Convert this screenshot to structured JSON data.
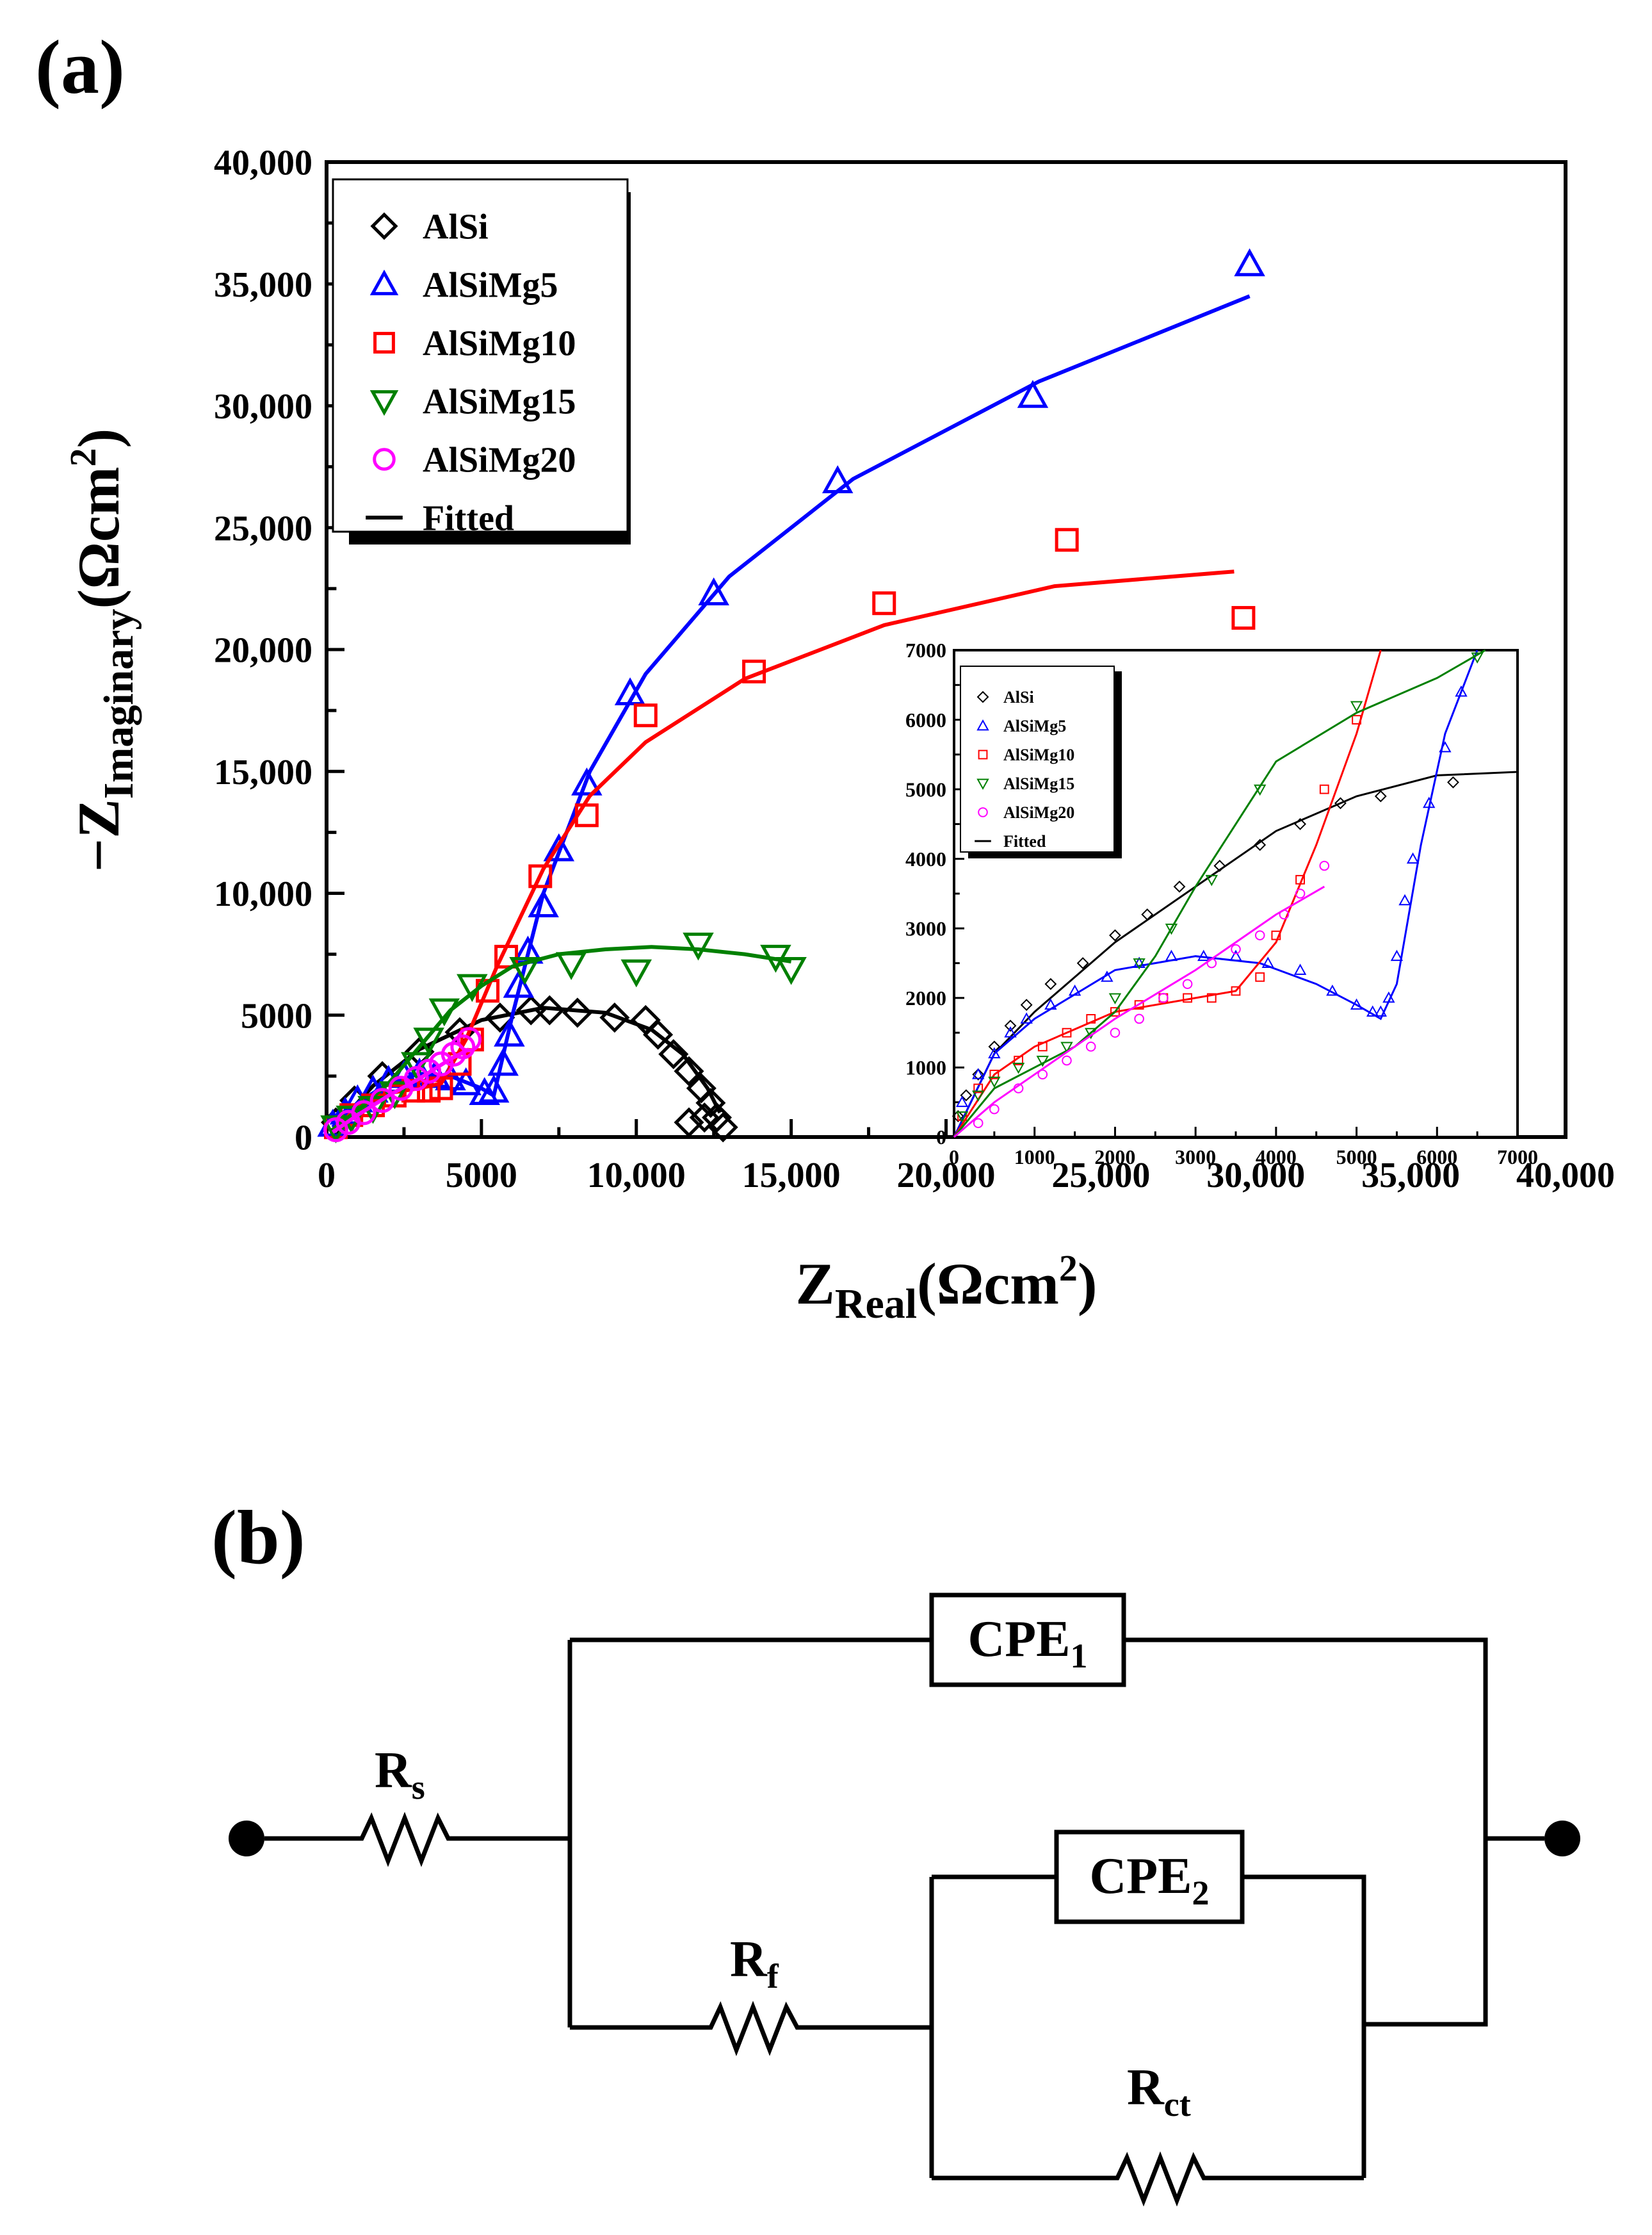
{
  "panel_labels": {
    "a": "(a)",
    "b": "(b)"
  },
  "colors": {
    "AlSi": "#000000",
    "AlSiMg5": "#0000ff",
    "AlSiMg10": "#ff0000",
    "AlSiMg15": "#008000",
    "AlSiMg20": "#ff00ff",
    "Fitted": "#000000"
  },
  "chart_data": [
    {
      "type": "scatter",
      "panel": "(a) main",
      "xlabel": {
        "main": "Z",
        "sub": "Real",
        "unit": "(Ωcm",
        "sup": "2",
        "close": ")"
      },
      "ylabel": {
        "main": "−Z",
        "sub": "Imaginary",
        "unit": "(Ωcm",
        "sup": "2",
        "close": ")"
      },
      "xlim": [
        0,
        40000
      ],
      "ylim": [
        0,
        40000
      ],
      "x_ticks": [
        "0",
        "5000",
        "10,000",
        "15,000",
        "20,000",
        "25,000",
        "30,000",
        "35,000",
        "40,000"
      ],
      "y_ticks": [
        "0",
        "5000",
        "10,000",
        "15,000",
        "20,000",
        "25,000",
        "30,000",
        "35,000",
        "40,000"
      ],
      "legend_position": "top-left",
      "legend": [
        "AlSi",
        "AlSiMg5",
        "AlSiMg10",
        "AlSiMg15",
        "AlSiMg20",
        "Fitted"
      ],
      "series": [
        {
          "name": "AlSi",
          "marker": "diamond",
          "x": [
            300,
            900,
            1800,
            3000,
            4300,
            5600,
            6600,
            7200,
            8100,
            9300,
            10300,
            10700,
            11200,
            11700,
            12100,
            12400,
            12600,
            12800,
            12200,
            11700
          ],
          "y": [
            600,
            1500,
            2500,
            3500,
            4300,
            4900,
            5200,
            5200,
            5100,
            4900,
            4800,
            4200,
            3400,
            2700,
            2000,
            1400,
            800,
            400,
            800,
            600
          ],
          "fit_x": [
            200,
            1500,
            3000,
            5000,
            7000,
            9000,
            10500,
            11500,
            12300,
            12700
          ],
          "fit_y": [
            300,
            2100,
            3600,
            4800,
            5300,
            5100,
            4400,
            3400,
            2000,
            1000
          ]
        },
        {
          "name": "AlSiMg5",
          "marker": "triangle-up",
          "x": [
            200,
            600,
            1000,
            1500,
            2000,
            2500,
            3000,
            3500,
            4000,
            4500,
            5100,
            5400,
            5700,
            5900,
            6200,
            6500,
            7000,
            7500,
            8400,
            9800,
            12500,
            16500,
            22800,
            29800
          ],
          "y": [
            500,
            1000,
            1500,
            1900,
            2300,
            2500,
            2600,
            2500,
            2400,
            2200,
            1800,
            1900,
            3000,
            4200,
            6200,
            7600,
            9500,
            11800,
            14500,
            18200,
            22300,
            26900,
            30400,
            35800
          ],
          "fit_x": [
            200,
            1000,
            2000,
            3000,
            4000,
            5000,
            5400,
            6000,
            7000,
            8500,
            10300,
            13000,
            17000,
            23000,
            29800
          ],
          "fit_y": [
            400,
            1400,
            2200,
            2600,
            2500,
            2000,
            1700,
            5000,
            10000,
            15000,
            19000,
            23000,
            27000,
            31000,
            34500
          ]
        },
        {
          "name": "AlSiMg10",
          "marker": "square",
          "x": [
            300,
            800,
            1500,
            2200,
            2800,
            3300,
            3700,
            4300,
            4700,
            5200,
            5800,
            6900,
            8400,
            10300,
            13800,
            18000,
            23900,
            29600
          ],
          "y": [
            400,
            900,
            1300,
            1700,
            1900,
            1900,
            2000,
            3000,
            4000,
            6000,
            7400,
            10700,
            13200,
            17300,
            19100,
            21900,
            24500,
            21300
          ],
          "fit_x": [
            200,
            1000,
            2000,
            3000,
            3700,
            4500,
            5500,
            7000,
            8500,
            10300,
            13500,
            18000,
            23500,
            29300
          ],
          "fit_y": [
            300,
            1200,
            1800,
            2000,
            2200,
            4000,
            7000,
            11000,
            14000,
            16200,
            18800,
            21000,
            22600,
            23200
          ]
        },
        {
          "name": "AlSiMg15",
          "marker": "triangle-down",
          "x": [
            300,
            800,
            1500,
            2200,
            2900,
            3300,
            3800,
            4700,
            6400,
            7900,
            10000,
            12000,
            14500,
            15000
          ],
          "y": [
            400,
            800,
            1200,
            1800,
            3000,
            4000,
            5200,
            6200,
            6900,
            7100,
            6800,
            7900,
            7400,
            6900
          ],
          "fit_x": [
            200,
            1000,
            2000,
            3000,
            4000,
            5000,
            6000,
            7500,
            9000,
            10500,
            12000,
            13500,
            15000
          ],
          "fit_y": [
            300,
            1100,
            2200,
            3700,
            5200,
            6200,
            7000,
            7500,
            7700,
            7800,
            7700,
            7500,
            7200
          ]
        },
        {
          "name": "AlSiMg20",
          "marker": "circle",
          "x": [
            300,
            700,
            1200,
            1800,
            2400,
            2900,
            3300,
            3700,
            4100,
            4400,
            4600
          ],
          "y": [
            300,
            600,
            1000,
            1500,
            2000,
            2400,
            2700,
            3000,
            3400,
            3700,
            4000
          ],
          "fit_x": [
            200,
            1000,
            2000,
            3000,
            4000,
            4600
          ],
          "fit_y": [
            200,
            900,
            1700,
            2400,
            3200,
            3600
          ]
        }
      ]
    },
    {
      "type": "scatter",
      "panel": "(a) inset",
      "xlim": [
        0,
        7000
      ],
      "ylim": [
        0,
        7000
      ],
      "x_ticks": [
        "0",
        "1000",
        "2000",
        "3000",
        "4000",
        "5000",
        "6000",
        "7000"
      ],
      "y_ticks": [
        "0",
        "1000",
        "2000",
        "3000",
        "4000",
        "5000",
        "6000",
        "7000"
      ],
      "legend_position": "top-left",
      "legend": [
        "AlSi",
        "AlSiMg5",
        "AlSiMg10",
        "AlSiMg15",
        "AlSiMg20",
        "Fitted"
      ],
      "series": [
        {
          "name": "AlSi",
          "marker": "diamond",
          "x": [
            50,
            150,
            300,
            500,
            700,
            900,
            1200,
            1600,
            2000,
            2400,
            2800,
            3300,
            3800,
            4300,
            4800,
            5300,
            6200
          ],
          "y": [
            300,
            600,
            900,
            1300,
            1600,
            1900,
            2200,
            2500,
            2900,
            3200,
            3600,
            3900,
            4200,
            4500,
            4800,
            4900,
            5100
          ],
          "fit_x": [
            0,
            500,
            1000,
            2000,
            3000,
            4000,
            5000,
            6000,
            7000
          ],
          "fit_y": [
            0,
            1200,
            1800,
            2800,
            3600,
            4400,
            4900,
            5200,
            5250
          ]
        },
        {
          "name": "AlSiMg5",
          "marker": "triangle-up",
          "x": [
            100,
            300,
            500,
            700,
            900,
            1200,
            1500,
            1900,
            2300,
            2700,
            3100,
            3500,
            3900,
            4300,
            4700,
            5000,
            5200,
            5300,
            5400,
            5500,
            5600,
            5700,
            5900,
            6100,
            6300
          ],
          "y": [
            500,
            900,
            1200,
            1500,
            1700,
            1900,
            2100,
            2300,
            2500,
            2600,
            2600,
            2600,
            2500,
            2400,
            2100,
            1900,
            1800,
            1800,
            2000,
            2600,
            3400,
            4000,
            4800,
            5600,
            6400
          ],
          "fit_x": [
            0,
            500,
            1000,
            2000,
            3000,
            3800,
            4500,
            5000,
            5300,
            5500,
            5800,
            6100,
            6500
          ],
          "fit_y": [
            0,
            1200,
            1700,
            2400,
            2600,
            2500,
            2200,
            1900,
            1700,
            2200,
            4200,
            5800,
            7000
          ]
        },
        {
          "name": "AlSiMg10",
          "marker": "square",
          "x": [
            100,
            300,
            500,
            800,
            1100,
            1400,
            1700,
            2000,
            2300,
            2600,
            2900,
            3200,
            3500,
            3800,
            4000,
            4300,
            4600,
            5000
          ],
          "y": [
            300,
            700,
            900,
            1100,
            1300,
            1500,
            1700,
            1800,
            1900,
            2000,
            2000,
            2000,
            2100,
            2300,
            2900,
            3700,
            5000,
            6000
          ],
          "fit_x": [
            0,
            500,
            1000,
            2000,
            3000,
            3500,
            4000,
            4500,
            5000,
            5300
          ],
          "fit_y": [
            0,
            900,
            1300,
            1800,
            2000,
            2100,
            2800,
            4200,
            5800,
            7000
          ]
        },
        {
          "name": "AlSiMg15",
          "marker": "triangle-down",
          "x": [
            100,
            300,
            500,
            800,
            1100,
            1400,
            1700,
            2000,
            2300,
            2700,
            3200,
            3800,
            5000,
            6500
          ],
          "y": [
            300,
            600,
            800,
            1000,
            1100,
            1300,
            1500,
            2000,
            2500,
            3000,
            3700,
            5000,
            6200,
            6900
          ],
          "fit_x": [
            0,
            500,
            1000,
            1500,
            2000,
            2500,
            3000,
            3500,
            4000,
            5000,
            6000,
            6600
          ],
          "fit_y": [
            0,
            700,
            1000,
            1300,
            1800,
            2600,
            3600,
            4500,
            5400,
            6100,
            6600,
            7000
          ]
        },
        {
          "name": "AlSiMg20",
          "marker": "circle",
          "x": [
            300,
            500,
            800,
            1100,
            1400,
            1700,
            2000,
            2300,
            2600,
            2900,
            3200,
            3500,
            3800,
            4100,
            4300,
            4600
          ],
          "y": [
            200,
            400,
            700,
            900,
            1100,
            1300,
            1500,
            1700,
            2000,
            2200,
            2500,
            2700,
            2900,
            3200,
            3500,
            3900
          ],
          "fit_x": [
            0,
            500,
            1000,
            2000,
            3000,
            4000,
            4600
          ],
          "fit_y": [
            0,
            500,
            900,
            1700,
            2400,
            3200,
            3600
          ]
        }
      ]
    }
  ],
  "circuit": {
    "Rs": {
      "main": "R",
      "sub": "s"
    },
    "Rf": {
      "main": "R",
      "sub": "f"
    },
    "Rct": {
      "main": "R",
      "sub": "ct"
    },
    "CPE1": {
      "main": "CPE",
      "sub": "1"
    },
    "CPE2": {
      "main": "CPE",
      "sub": "2"
    }
  }
}
